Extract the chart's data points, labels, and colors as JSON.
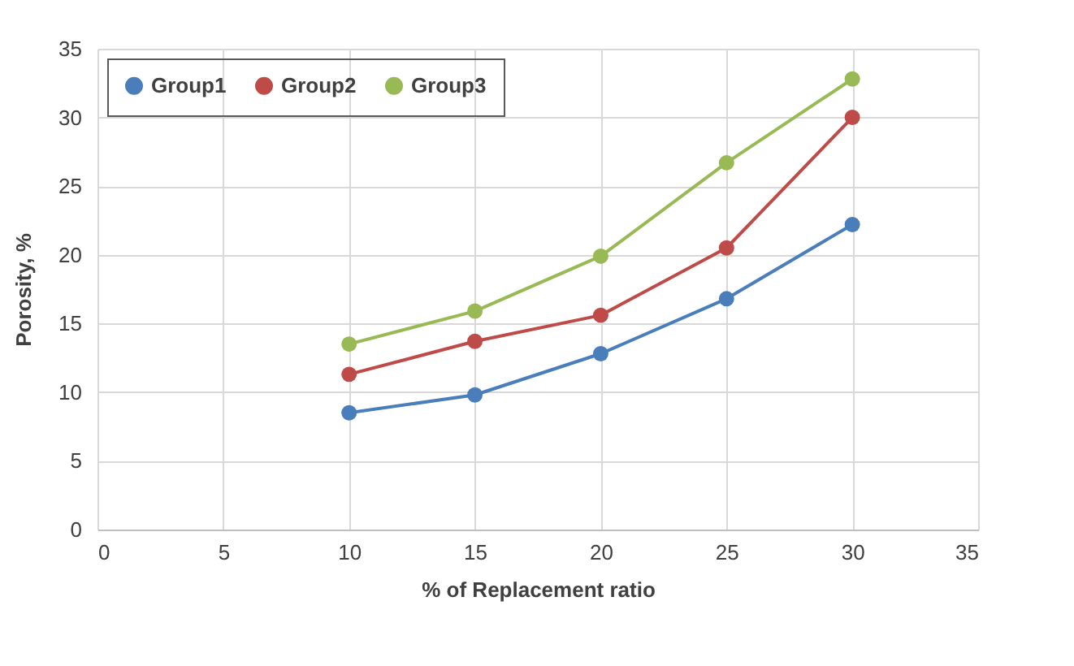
{
  "chart_data": {
    "type": "line",
    "xlabel": "% of Replacement ratio",
    "ylabel": "Porosity, %",
    "x": [
      10,
      15,
      20,
      25,
      30
    ],
    "series": [
      {
        "name": "Group1",
        "color": "#4a7ebb",
        "values": [
          8.5,
          9.8,
          12.8,
          16.8,
          22.2
        ]
      },
      {
        "name": "Group2",
        "color": "#be4b48",
        "values": [
          11.3,
          13.7,
          15.6,
          20.5,
          30.0
        ]
      },
      {
        "name": "Group3",
        "color": "#98b954",
        "values": [
          13.5,
          15.9,
          19.9,
          26.7,
          32.8
        ]
      }
    ],
    "xlim": [
      0,
      35
    ],
    "xticks": [
      0,
      5,
      10,
      15,
      20,
      25,
      30,
      35
    ],
    "ylim": [
      0,
      35
    ],
    "yticks": [
      0,
      5,
      10,
      15,
      20,
      25,
      30,
      35
    ],
    "grid": true,
    "legend": "top left",
    "marker": "circle",
    "line_style": "solid"
  }
}
